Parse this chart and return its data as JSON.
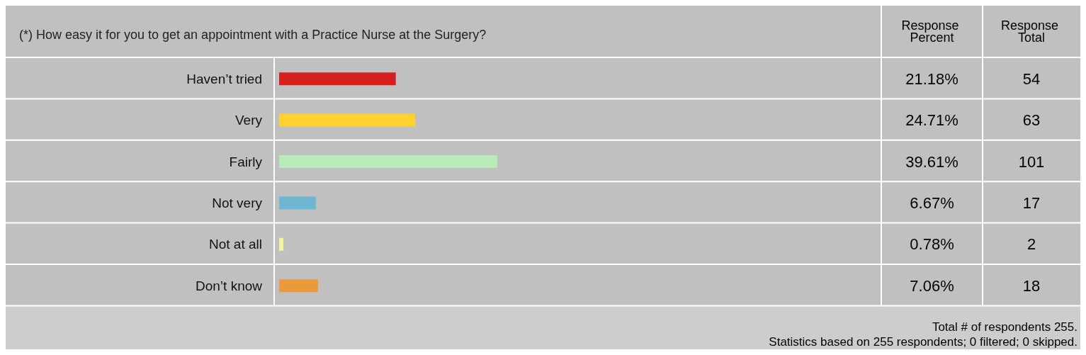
{
  "chart_data": {
    "type": "bar",
    "orientation": "horizontal",
    "title": "(*) How easy it for you to get an appointment with a Practice Nurse at the Surgery?",
    "categories": [
      "Haven’t tried",
      "Very",
      "Fairly",
      "Not very",
      "Not at all",
      "Don’t know"
    ],
    "values": [
      21.18,
      24.71,
      39.61,
      6.67,
      0.78,
      7.06
    ],
    "colors": [
      "#d62020",
      "#fdd12e",
      "#b8ecb8",
      "#6db7d2",
      "#f6f39a",
      "#ea9a3a"
    ],
    "value_labels": [
      "21.18%",
      "24.71%",
      "39.61%",
      "6.67%",
      "0.78%",
      "7.06%"
    ],
    "annotations": [
      "Response Percent",
      "Response Total",
      "54",
      "63",
      "101",
      "17",
      "2",
      "18",
      "Total # of respondents 255.",
      "Statistics based on 255 respondents; 0 filtered; 0 skipped."
    ]
  }
}
